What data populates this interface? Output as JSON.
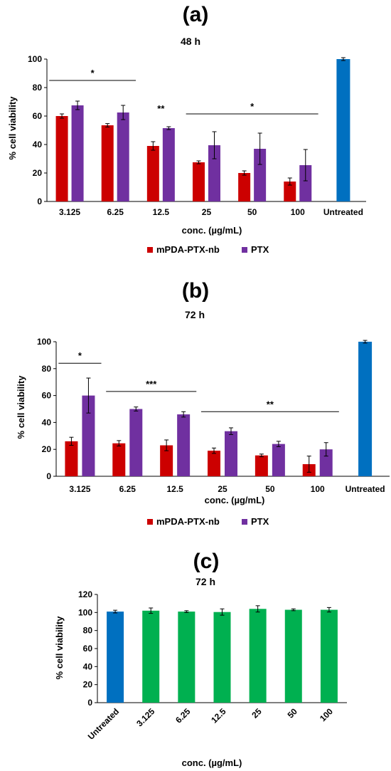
{
  "colors": {
    "mpda": "#cc0000",
    "ptx": "#7030a0",
    "untreated": "#0070c0",
    "ctrl": "#00b050",
    "axis": "#000000"
  },
  "chart_data": [
    {
      "type": "bar",
      "panel": "(a)",
      "title": "48 h",
      "xlabel": "conc. (µg/mL)",
      "ylabel": "% cell viability",
      "ylim": [
        0,
        100
      ],
      "yticks": [
        0,
        20,
        40,
        60,
        80,
        100
      ],
      "categories": [
        "3.125",
        "6.25",
        "12.5",
        "25",
        "50",
        "100",
        "Untreated"
      ],
      "series": [
        {
          "name": "mPDA-PTX-nb",
          "values": [
            60,
            53.5,
            39,
            27.5,
            20,
            14,
            null
          ],
          "errors": [
            1.5,
            1.2,
            3,
            1,
            1.5,
            2.5,
            null
          ]
        },
        {
          "name": "PTX",
          "values": [
            67.5,
            62.5,
            51.5,
            39.5,
            37,
            25.5,
            null
          ],
          "errors": [
            3,
            5,
            1,
            9.5,
            11,
            11,
            null
          ]
        },
        {
          "name": "",
          "values": [
            null,
            null,
            null,
            null,
            null,
            null,
            100
          ],
          "errors": [
            null,
            null,
            null,
            null,
            null,
            null,
            1
          ]
        }
      ],
      "significance": [
        {
          "label": "*",
          "from": 0,
          "to": 1,
          "y": 85
        },
        {
          "label": "**",
          "from": 2,
          "to": 2,
          "y": null
        },
        {
          "label": "*",
          "from": 3,
          "to": 5,
          "y": 61.5
        }
      ],
      "legend": [
        "mPDA-PTX-nb",
        "PTX"
      ],
      "grid": false
    },
    {
      "type": "bar",
      "panel": "(b)",
      "title": "72 h",
      "xlabel": "conc. (µg/mL)",
      "ylabel": "% cell viability",
      "ylim": [
        0,
        100
      ],
      "yticks": [
        0,
        20,
        40,
        60,
        80,
        100
      ],
      "categories": [
        "3.125",
        "6.25",
        "12.5",
        "25",
        "50",
        "100",
        "Untreated"
      ],
      "series": [
        {
          "name": "mPDA-PTX-nb",
          "values": [
            26,
            24.5,
            23,
            19,
            15.5,
            9,
            null
          ],
          "errors": [
            3,
            2,
            4,
            2,
            1,
            6,
            null
          ]
        },
        {
          "name": "PTX",
          "values": [
            60,
            50,
            46,
            33.5,
            24,
            20,
            null
          ],
          "errors": [
            13,
            1.5,
            2,
            2.5,
            2,
            5,
            null
          ]
        },
        {
          "name": "",
          "values": [
            null,
            null,
            null,
            null,
            null,
            null,
            100
          ],
          "errors": [
            null,
            null,
            null,
            null,
            null,
            null,
            1
          ]
        }
      ],
      "significance": [
        {
          "label": "*",
          "from": 0,
          "to": 0,
          "y": 84
        },
        {
          "label": "***",
          "from": 1,
          "to": 2,
          "y": 63
        },
        {
          "label": "**",
          "from": 3,
          "to": 5,
          "y": 48
        }
      ],
      "legend": [
        "mPDA-PTX-nb",
        "PTX"
      ],
      "grid": false
    },
    {
      "type": "bar",
      "panel": "(c)",
      "title": "72 h",
      "xlabel": "conc. (µg/mL)",
      "ylabel": "% cell viability",
      "ylim": [
        0,
        120
      ],
      "yticks": [
        0,
        20,
        40,
        60,
        80,
        100,
        120
      ],
      "categories": [
        "Untreated",
        "3.125",
        "6.25",
        "12.5",
        "25",
        "50",
        "100"
      ],
      "series": [
        {
          "name": "",
          "values": [
            101,
            102,
            101,
            100.5,
            104,
            103,
            103
          ],
          "errors": [
            1.5,
            3,
            1,
            3.5,
            3.5,
            1,
            2.5
          ]
        }
      ],
      "legend": [],
      "grid": false
    }
  ]
}
